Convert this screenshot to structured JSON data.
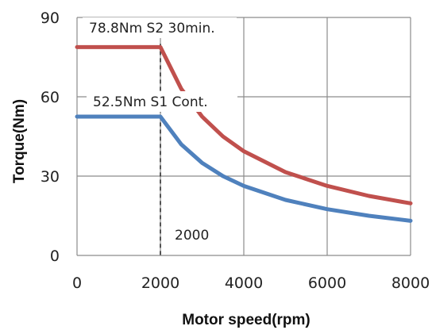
{
  "chart_data": {
    "type": "line",
    "xlabel": "Motor speed(rpm)",
    "ylabel": "Torque(Nm)",
    "xlim": [
      0,
      8000
    ],
    "ylim": [
      0,
      90
    ],
    "xticks": [
      0,
      2000,
      4000,
      6000,
      8000
    ],
    "yticks": [
      0,
      30,
      60,
      90
    ],
    "grid": true,
    "series": [
      {
        "name": "78.8Nm S2 30min.",
        "color": "#c0504d",
        "x": [
          0,
          2000,
          2500,
          3000,
          3500,
          4000,
          5000,
          6000,
          7000,
          8000
        ],
        "y": [
          78.8,
          78.8,
          63,
          52.5,
          45,
          39.4,
          31.5,
          26.3,
          22.5,
          19.7
        ]
      },
      {
        "name": "52.5Nm S1 Cont.",
        "color": "#4f81bd",
        "x": [
          0,
          2000,
          2500,
          3000,
          3500,
          4000,
          5000,
          6000,
          7000,
          8000
        ],
        "y": [
          52.5,
          52.5,
          42,
          35,
          30,
          26.3,
          21,
          17.5,
          15,
          13.1
        ]
      }
    ],
    "annotations": [
      {
        "text": "2000",
        "x": 2000
      }
    ]
  }
}
